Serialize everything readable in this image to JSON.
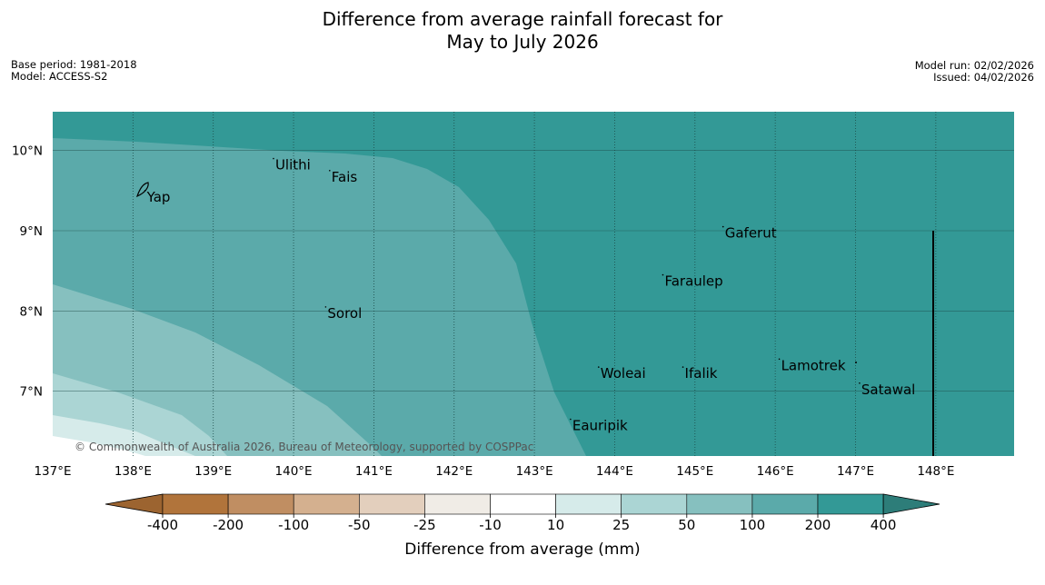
{
  "title_line1": "Difference from average rainfall forecast for",
  "title_line2": "May to July 2026",
  "base_period": "Base period: 1981-2018",
  "model": "Model: ACCESS-S2",
  "model_run": "Model run: 02/02/2026",
  "issued": "Issued: 04/02/2026",
  "copyright": "© Commonwealth of Australia 2026, Bureau of Meteorology, supported by COSPPac",
  "colors": {
    "c200_400": "#339996",
    "c100_200": "#5baaaa",
    "c50_100": "#86c0bf",
    "c25_50": "#abd5d4",
    "c10_25": "#d6ebea",
    "cm10_10": "#ffffff",
    "cm25_m10": "#f0ece6",
    "cm50_m25": "#e3cfbd",
    "cm100_m50": "#d4b08f",
    "cm200_m100": "#c08e62",
    "cm400_m200": "#b1743b",
    "below400": "#9c6430",
    "above400": "#2d7d79"
  },
  "map": {
    "lon_ticks": [
      "137°E",
      "138°E",
      "139°E",
      "140°E",
      "141°E",
      "142°E",
      "143°E",
      "144°E",
      "145°E",
      "146°E",
      "147°E",
      "148°E"
    ],
    "lat_ticks": [
      "10°N",
      "9°N",
      "8°N",
      "7°N"
    ],
    "places": [
      {
        "name": "Ulithi",
        "lon": 139.75,
        "lat": 9.9
      },
      {
        "name": "Fais",
        "lon": 140.45,
        "lat": 9.75
      },
      {
        "name": "Yap",
        "lon": 138.15,
        "lat": 9.5
      },
      {
        "name": "Gaferut",
        "lon": 145.35,
        "lat": 9.05
      },
      {
        "name": "Faraulep",
        "lon": 144.6,
        "lat": 8.45
      },
      {
        "name": "Sorol",
        "lon": 140.4,
        "lat": 8.05
      },
      {
        "name": "Lamotrek",
        "lon": 146.05,
        "lat": 7.4
      },
      {
        "name": "Woleai",
        "lon": 143.8,
        "lat": 7.3
      },
      {
        "name": "Ifalik",
        "lon": 144.85,
        "lat": 7.3
      },
      {
        "name": "Satawal",
        "lon": 147.05,
        "lat": 7.1
      },
      {
        "name": "Eauripik",
        "lon": 143.45,
        "lat": 6.65
      }
    ]
  },
  "colorbar": {
    "ticks": [
      "-400",
      "-200",
      "-100",
      "-50",
      "-25",
      "-10",
      "10",
      "25",
      "50",
      "100",
      "200",
      "400"
    ],
    "label": "Difference from average (mm)"
  }
}
